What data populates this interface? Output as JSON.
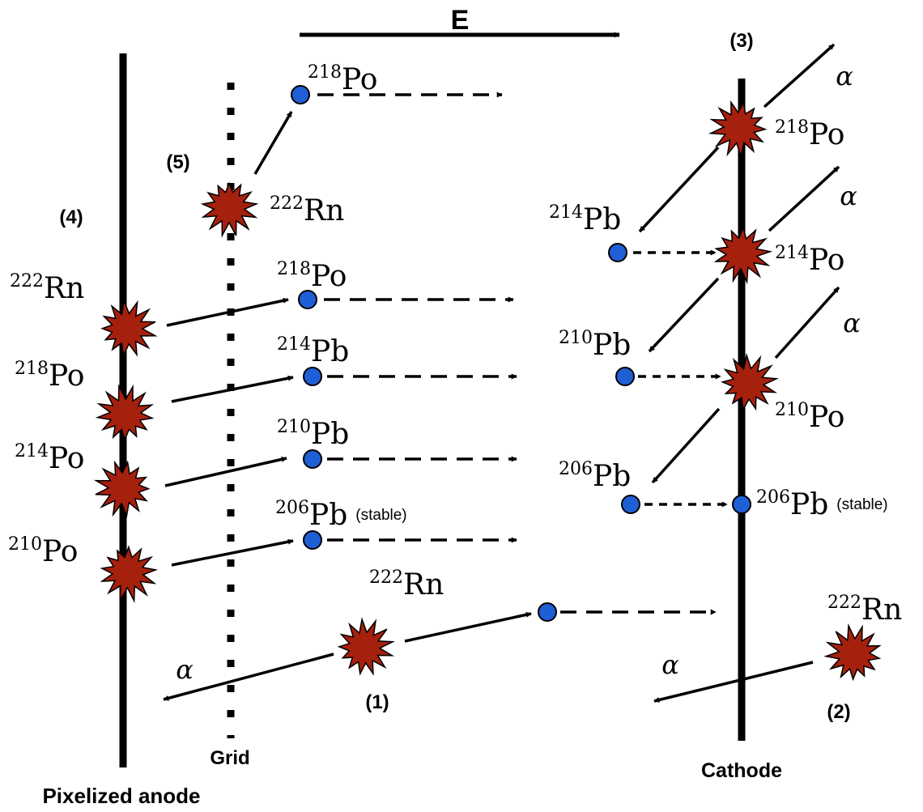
{
  "field_label": "E",
  "electrodes": {
    "anode": "Pixelized anode",
    "grid": "Grid",
    "cathode": "Cathode"
  },
  "case_labels": [
    "(1)",
    "(2)",
    "(3)",
    "(4)",
    "(5)"
  ],
  "alpha_symbol": "α",
  "stable_note": "(stable)",
  "nuclides": {
    "rn222": {
      "mass": "222",
      "symbol": "Rn"
    },
    "po218": {
      "mass": "218",
      "symbol": "Po"
    },
    "pb214": {
      "mass": "214",
      "symbol": "Pb"
    },
    "po214": {
      "mass": "214",
      "symbol": "Po"
    },
    "pb210": {
      "mass": "210",
      "symbol": "Pb"
    },
    "po210": {
      "mass": "210",
      "symbol": "Po"
    },
    "pb206": {
      "mass": "206",
      "symbol": "Pb"
    }
  },
  "colors": {
    "decay_burst": "#a6200e",
    "daughter_ion": "#1f5fd6",
    "line": "#000000"
  }
}
